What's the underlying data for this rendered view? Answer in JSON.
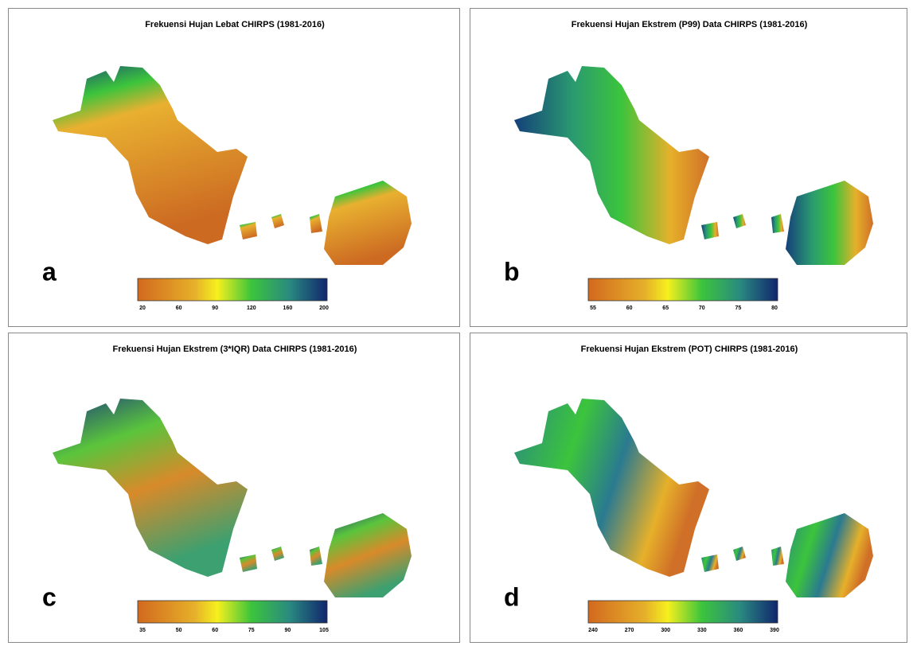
{
  "panels": [
    {
      "title": "Frekuensi Hujan Lebat CHIRPS (1981-2016)",
      "letter": "a",
      "colorbar": {
        "ticks": [
          20,
          60,
          90,
          120,
          160,
          200
        ]
      }
    },
    {
      "title": "Frekuensi Hujan Ekstrem (P99) Data CHIRPS (1981-2016)",
      "letter": "b",
      "colorbar": {
        "ticks": [
          55,
          60,
          65,
          70,
          75,
          80
        ]
      }
    },
    {
      "title": "Frekuensi Hujan Ekstrem (3*IQR) Data CHIRPS (1981-2016)",
      "letter": "c",
      "colorbar": {
        "ticks": [
          35,
          50,
          60,
          75,
          90,
          105
        ]
      }
    },
    {
      "title": "Frekuensi Hujan Ekstrem (POT) CHIRPS (1981-2016)",
      "letter": "d",
      "colorbar": {
        "ticks": [
          240,
          270,
          300,
          330,
          360,
          390
        ]
      }
    }
  ]
}
